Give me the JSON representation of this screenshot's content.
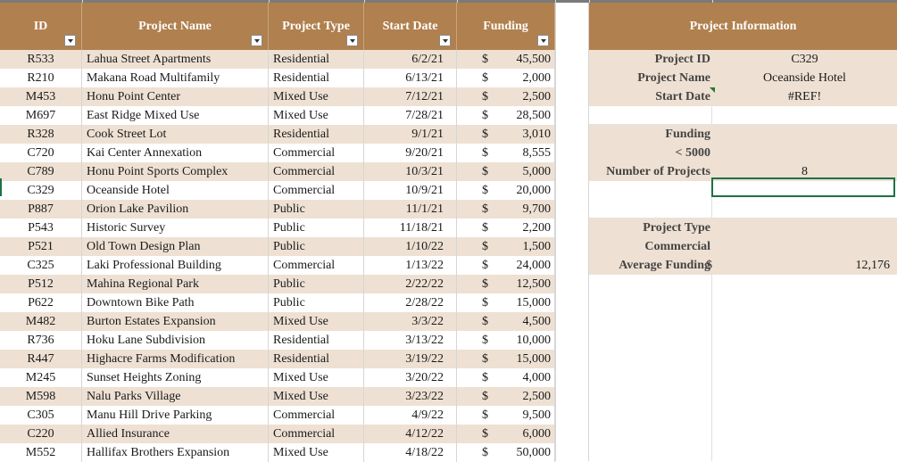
{
  "table": {
    "headers": {
      "id": "ID",
      "name": "Project Name",
      "type": "Project Type",
      "date": "Start Date",
      "funding": "Funding"
    },
    "currency_symbol": "$",
    "rows": [
      {
        "id": "R533",
        "name": "Lahua Street Apartments",
        "type": "Residential",
        "date": "6/2/21",
        "funding": "45,500"
      },
      {
        "id": "R210",
        "name": "Makana Road Multifamily",
        "type": "Residential",
        "date": "6/13/21",
        "funding": "2,000"
      },
      {
        "id": "M453",
        "name": "Honu Point Center",
        "type": "Mixed Use",
        "date": "7/12/21",
        "funding": "2,500"
      },
      {
        "id": "M697",
        "name": "East Ridge Mixed Use",
        "type": "Mixed Use",
        "date": "7/28/21",
        "funding": "28,500"
      },
      {
        "id": "R328",
        "name": "Cook Street Lot",
        "type": "Residential",
        "date": "9/1/21",
        "funding": "3,010"
      },
      {
        "id": "C720",
        "name": "Kai Center Annexation",
        "type": "Commercial",
        "date": "9/20/21",
        "funding": "8,555"
      },
      {
        "id": "C789",
        "name": "Honu Point Sports Complex",
        "type": "Commercial",
        "date": "10/3/21",
        "funding": "5,000"
      },
      {
        "id": "C329",
        "name": "Oceanside Hotel",
        "type": "Commercial",
        "date": "10/9/21",
        "funding": "20,000"
      },
      {
        "id": "P887",
        "name": "Orion Lake Pavilion",
        "type": "Public",
        "date": "11/1/21",
        "funding": "9,700"
      },
      {
        "id": "P543",
        "name": "Historic Survey",
        "type": "Public",
        "date": "11/18/21",
        "funding": "2,200"
      },
      {
        "id": "P521",
        "name": "Old Town Design Plan",
        "type": "Public",
        "date": "1/10/22",
        "funding": "1,500"
      },
      {
        "id": "C325",
        "name": "Laki Professional Building",
        "type": "Commercial",
        "date": "1/13/22",
        "funding": "24,000"
      },
      {
        "id": "P512",
        "name": "Mahina Regional Park",
        "type": "Public",
        "date": "2/22/22",
        "funding": "12,500"
      },
      {
        "id": "P622",
        "name": "Downtown Bike Path",
        "type": "Public",
        "date": "2/28/22",
        "funding": "15,000"
      },
      {
        "id": "M482",
        "name": "Burton Estates Expansion",
        "type": "Mixed Use",
        "date": "3/3/22",
        "funding": "4,500"
      },
      {
        "id": "R736",
        "name": "Hoku Lane Subdivision",
        "type": "Residential",
        "date": "3/13/22",
        "funding": "10,000"
      },
      {
        "id": "R447",
        "name": "Highacre Farms Modification",
        "type": "Residential",
        "date": "3/19/22",
        "funding": "15,000"
      },
      {
        "id": "M245",
        "name": "Sunset Heights Zoning",
        "type": "Mixed Use",
        "date": "3/20/22",
        "funding": "4,000"
      },
      {
        "id": "M598",
        "name": "Nalu Parks Village",
        "type": "Mixed Use",
        "date": "3/23/22",
        "funding": "2,500"
      },
      {
        "id": "C305",
        "name": "Manu Hill Drive Parking",
        "type": "Commercial",
        "date": "4/9/22",
        "funding": "9,500"
      },
      {
        "id": "C220",
        "name": "Allied Insurance",
        "type": "Commercial",
        "date": "4/12/22",
        "funding": "6,000"
      },
      {
        "id": "M552",
        "name": "Hallifax Brothers Expansion",
        "type": "Mixed Use",
        "date": "4/18/22",
        "funding": "50,000"
      }
    ]
  },
  "info_panel": {
    "header": "Project Information",
    "project_id_label": "Project ID",
    "project_id_value": "C329",
    "project_name_label": "Project Name",
    "project_name_value": "Oceanside Hotel",
    "start_date_label": "Start Date",
    "start_date_value": "#REF!",
    "funding_label": "Funding",
    "funding_criteria": "< 5000",
    "num_projects_label": "Number of Projects",
    "num_projects_value": "8",
    "project_type_label": "Project Type",
    "project_type_value": "Commercial",
    "avg_funding_label": "Average Funding",
    "avg_funding_currency": "$",
    "avg_funding_value": "12,176"
  },
  "colors": {
    "header_bg": "#b0804e",
    "band_bg": "#eee1d3",
    "selection": "#1e7145"
  }
}
